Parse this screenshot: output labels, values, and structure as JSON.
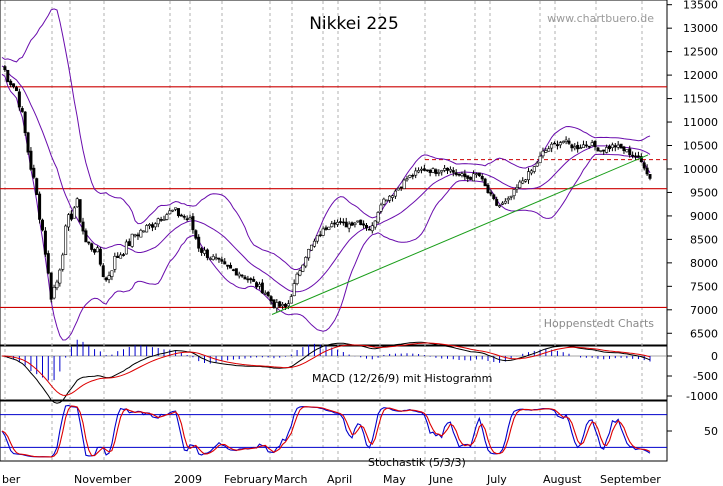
{
  "chart_data": [
    {
      "type": "candlestick",
      "title": "Nikkei 225",
      "watermark": "www.chartbuero.de",
      "credit": "Hoppenstedt Charts",
      "ylim": [
        6250,
        13600
      ],
      "y_ticks": [
        6500,
        7000,
        7500,
        8000,
        8500,
        9000,
        9500,
        10000,
        10500,
        11000,
        11500,
        12000,
        12500,
        13000,
        13500
      ],
      "y_tick_labels": [
        "6500",
        "7000",
        "7500",
        "8000",
        "8500",
        "9000",
        "9500",
        "10000",
        "10500",
        "11000",
        "11500",
        "12000",
        "12500",
        "13000",
        "13500"
      ],
      "x_labels": [
        "ber",
        "November",
        "2009",
        "February",
        "March",
        "April",
        "May",
        "June",
        "July",
        "August",
        "September"
      ],
      "horizontal_levels": [
        7050,
        9580,
        11750
      ],
      "resistance_level": 10200,
      "trendline": {
        "from": 6900,
        "to": 10300
      },
      "price_path": [
        [
          0.0,
          12200
        ],
        [
          0.025,
          11600
        ],
        [
          0.04,
          10400
        ],
        [
          0.055,
          9300
        ],
        [
          0.065,
          8500
        ],
        [
          0.075,
          7300
        ],
        [
          0.085,
          7600
        ],
        [
          0.1,
          8800
        ],
        [
          0.115,
          9300
        ],
        [
          0.13,
          8400
        ],
        [
          0.145,
          8300
        ],
        [
          0.16,
          7600
        ],
        [
          0.175,
          8100
        ],
        [
          0.19,
          8300
        ],
        [
          0.205,
          8600
        ],
        [
          0.225,
          8750
        ],
        [
          0.245,
          9000
        ],
        [
          0.265,
          9100
        ],
        [
          0.29,
          8900
        ],
        [
          0.305,
          8300
        ],
        [
          0.325,
          8100
        ],
        [
          0.345,
          7900
        ],
        [
          0.365,
          7800
        ],
        [
          0.385,
          7600
        ],
        [
          0.405,
          7400
        ],
        [
          0.42,
          7100
        ],
        [
          0.44,
          7050
        ],
        [
          0.455,
          7700
        ],
        [
          0.47,
          8200
        ],
        [
          0.49,
          8600
        ],
        [
          0.51,
          8900
        ],
        [
          0.53,
          8800
        ],
        [
          0.55,
          8900
        ],
        [
          0.57,
          8700
        ],
        [
          0.585,
          9300
        ],
        [
          0.605,
          9500
        ],
        [
          0.625,
          9800
        ],
        [
          0.65,
          10000
        ],
        [
          0.67,
          9950
        ],
        [
          0.685,
          10050
        ],
        [
          0.7,
          9900
        ],
        [
          0.72,
          9800
        ],
        [
          0.735,
          9900
        ],
        [
          0.75,
          9500
        ],
        [
          0.765,
          9200
        ],
        [
          0.78,
          9300
        ],
        [
          0.8,
          9700
        ],
        [
          0.82,
          10000
        ],
        [
          0.835,
          10350
        ],
        [
          0.85,
          10500
        ],
        [
          0.865,
          10600
        ],
        [
          0.885,
          10450
        ],
        [
          0.905,
          10550
        ],
        [
          0.925,
          10400
        ],
        [
          0.945,
          10500
        ],
        [
          0.96,
          10400
        ],
        [
          0.975,
          10300
        ],
        [
          0.99,
          10100
        ],
        [
          1.0,
          9800
        ]
      ]
    },
    {
      "type": "line",
      "label": "MACD (12/26/9) mit Histogramm",
      "ylim": [
        -1100,
        250
      ],
      "y_ticks": [
        0,
        -500,
        -1000
      ],
      "y_tick_labels": [
        "0",
        "-500",
        "-1000"
      ]
    },
    {
      "type": "line",
      "label": "Stochastik (5/3/3)",
      "ylim": [
        -5,
        105
      ],
      "y_ticks": [
        50
      ],
      "y_tick_labels": [
        "50"
      ],
      "levels": [
        20,
        80
      ]
    }
  ]
}
